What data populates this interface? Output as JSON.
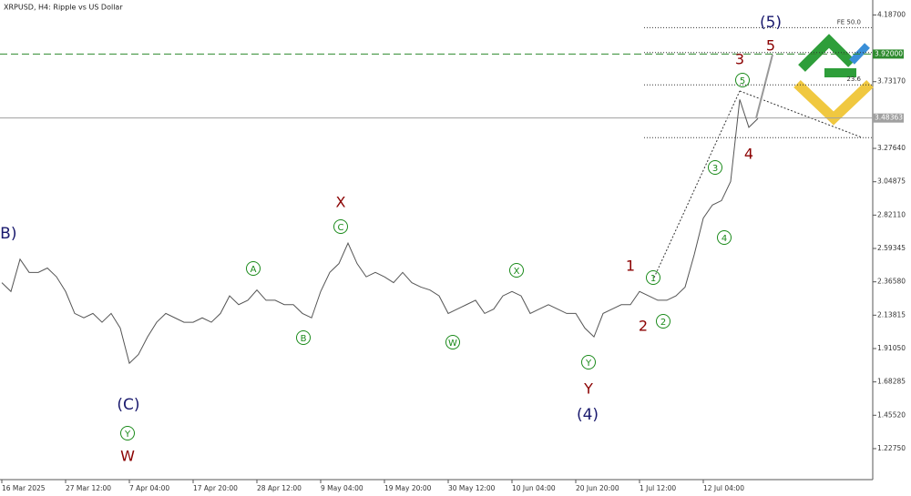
{
  "chart_data": {
    "type": "line",
    "title": "XRPUSD, H4:  Ripple vs US Dollar",
    "categories": [
      "16 Mar 2025",
      null,
      null,
      null,
      null,
      null,
      null,
      "27 Mar 12:00",
      null,
      null,
      null,
      null,
      null,
      null,
      "7 Apr 04:00",
      null,
      null,
      null,
      null,
      null,
      null,
      "17 Apr 20:00",
      null,
      null,
      null,
      null,
      null,
      null,
      "28 Apr 12:00",
      null,
      null,
      null,
      null,
      null,
      null,
      "9 May 04:00",
      null,
      null,
      null,
      null,
      null,
      null,
      "19 May 20:00",
      null,
      null,
      null,
      null,
      null,
      null,
      "30 May 12:00",
      null,
      null,
      null,
      null,
      null,
      null,
      "10 Jun 04:00",
      null,
      null,
      null,
      null,
      null,
      null,
      "20 Jun 20:00",
      null,
      null,
      null,
      null,
      null,
      null,
      "1 Jul 12:00",
      null,
      null,
      null,
      null,
      null,
      null,
      "12 Jul 04:00",
      null,
      null,
      null,
      null,
      null,
      null
    ],
    "series": [
      {
        "name": "XRPUSD",
        "color": "#555555",
        "values": [
          2.36,
          2.3,
          2.52,
          2.43,
          2.43,
          2.46,
          2.4,
          2.3,
          2.15,
          2.12,
          2.15,
          2.09,
          2.15,
          2.05,
          1.81,
          1.87,
          1.99,
          2.09,
          2.15,
          2.12,
          2.09,
          2.09,
          2.12,
          2.09,
          2.15,
          2.27,
          2.21,
          2.24,
          2.31,
          2.24,
          2.24,
          2.21,
          2.21,
          2.15,
          2.12,
          2.3,
          2.43,
          2.49,
          2.63,
          2.49,
          2.4,
          2.43,
          2.4,
          2.36,
          2.43,
          2.36,
          2.33,
          2.31,
          2.27,
          2.15,
          2.18,
          2.21,
          2.24,
          2.15,
          2.18,
          2.27,
          2.3,
          2.27,
          2.15,
          2.18,
          2.21,
          2.18,
          2.15,
          2.15,
          2.05,
          1.99,
          2.15,
          2.18,
          2.21,
          2.21,
          2.3,
          2.27,
          2.24,
          2.24,
          2.27,
          2.33,
          2.55,
          2.8,
          2.89,
          2.92,
          3.05,
          3.61,
          3.42,
          3.48
        ]
      }
    ],
    "ylim": [
      1.016,
      4.289
    ],
    "yticks": [
      {
        "value": 1.2275,
        "label": "1.22750"
      },
      {
        "value": 1.4552,
        "label": "1.45520"
      },
      1.68285,
      {
        "value": 1.9105,
        "label": "1.91050"
      },
      2.13815,
      {
        "value": 2.3658,
        "label": "2.36580"
      },
      2.59345,
      {
        "value": 2.8211,
        "label": "2.82110"
      },
      3.04875,
      {
        "value": 3.2764,
        "label": "3.27640"
      },
      {
        "value": 3.7317,
        "label": "3.73170"
      },
      {
        "value": 4.187,
        "label": "4.18700"
      }
    ],
    "price_lines": [
      {
        "value": 3.92,
        "label": "3.92000",
        "color": "#2e8b2e"
      },
      {
        "value": 3.48363,
        "label": "3.48363",
        "color": "#a0a0a0"
      }
    ],
    "fib_levels": [
      {
        "value": 4.1,
        "label": "FE 50.0"
      },
      3.93,
      {
        "value": 3.71,
        "label": "23.6"
      },
      3.35
    ],
    "annotations": [
      {
        "text": "(B)",
        "color": "#1a1a6e",
        "circled": false
      },
      {
        "text": "(C)",
        "color": "#1a1a6e",
        "circled": false
      },
      {
        "text": "Y",
        "color": "#1a8a1a",
        "circled": true
      },
      {
        "text": "W",
        "color": "#8b0000",
        "circled": false
      },
      {
        "text": "A",
        "color": "#1a8a1a",
        "circled": true
      },
      {
        "text": "B",
        "color": "#1a8a1a",
        "circled": true
      },
      {
        "text": "X",
        "color": "#8b0000",
        "circled": false
      },
      {
        "text": "C",
        "color": "#1a8a1a",
        "circled": true
      },
      {
        "text": "W",
        "color": "#1a8a1a",
        "circled": true
      },
      {
        "text": "X",
        "color": "#1a8a1a",
        "circled": true
      },
      {
        "text": "Y",
        "color": "#1a8a1a",
        "circled": true
      },
      {
        "text": "Y",
        "color": "#8b0000",
        "circled": false
      },
      {
        "text": "(4)",
        "color": "#1a1a6e",
        "circled": false
      },
      {
        "text": "1",
        "color": "#8b0000",
        "circled": false
      },
      {
        "text": "1",
        "color": "#1a8a1a",
        "circled": true
      },
      {
        "text": "2",
        "color": "#8b0000",
        "circled": false
      },
      {
        "text": "2",
        "color": "#1a8a1a",
        "circled": true
      },
      {
        "text": "3",
        "color": "#1a8a1a",
        "circled": true
      },
      {
        "text": "4",
        "color": "#1a8a1a",
        "circled": true
      },
      {
        "text": "3",
        "color": "#8b0000",
        "circled": false
      },
      {
        "text": "5",
        "color": "#1a8a1a",
        "circled": true
      },
      {
        "text": "4",
        "color": "#8b0000",
        "circled": false
      },
      {
        "text": "5",
        "color": "#8b0000",
        "circled": false
      },
      {
        "text": "(5)",
        "color": "#1a1a6e",
        "circled": false
      }
    ]
  }
}
